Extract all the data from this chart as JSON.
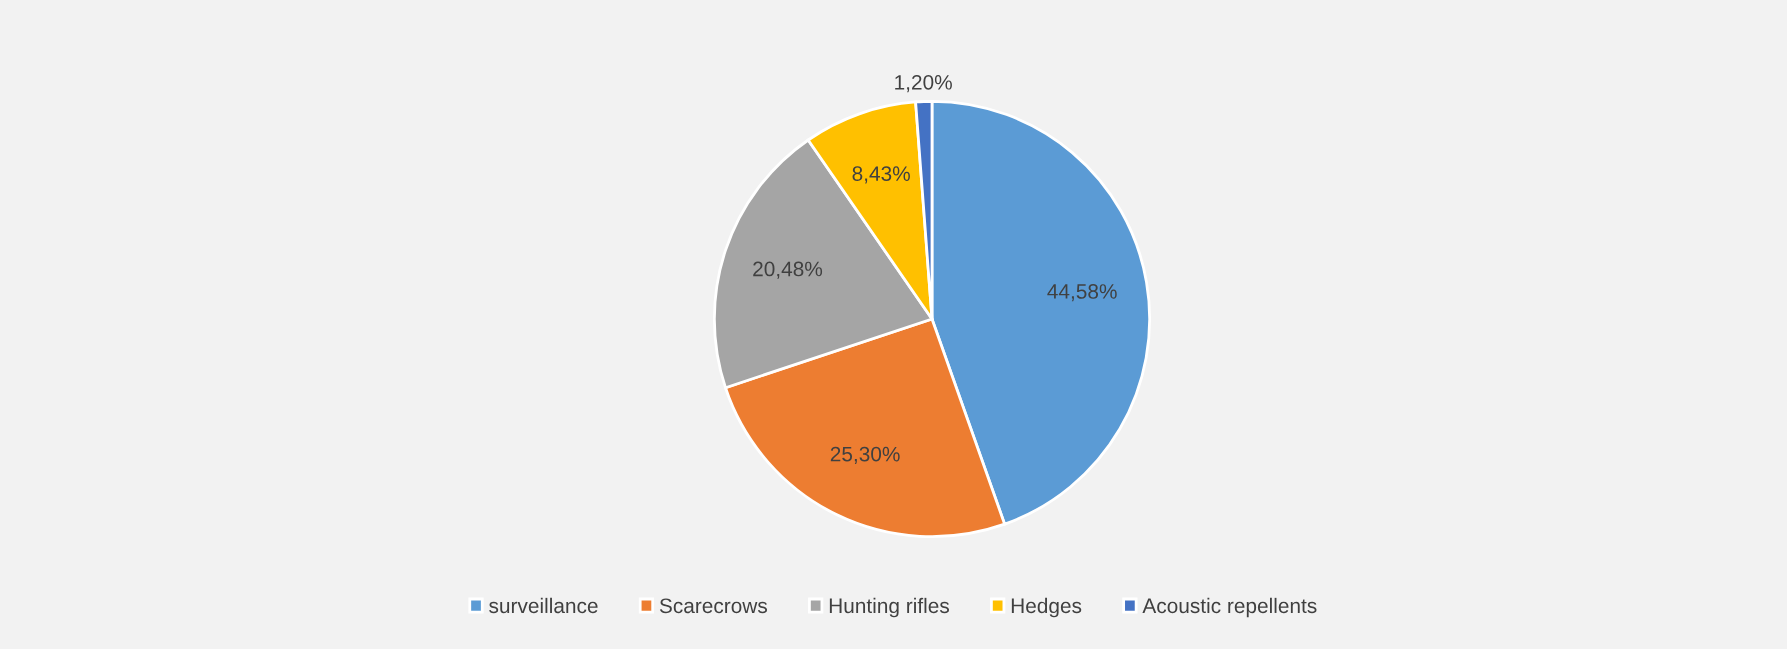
{
  "chart_data": {
    "type": "pie",
    "categories": [
      "surveillance",
      "Scarecrows",
      "Hunting rifles",
      "Hedges",
      "Acoustic repellents"
    ],
    "values": [
      44.58,
      25.3,
      20.48,
      8.43,
      1.2
    ],
    "value_labels": [
      "44,58%",
      "25,30%",
      "20,48%",
      "8,43%",
      "1,20%"
    ],
    "colors": [
      "#5b9bd5",
      "#ed7d31",
      "#a5a5a5",
      "#ffc000",
      "#4472c4"
    ],
    "legend": "bottom"
  }
}
